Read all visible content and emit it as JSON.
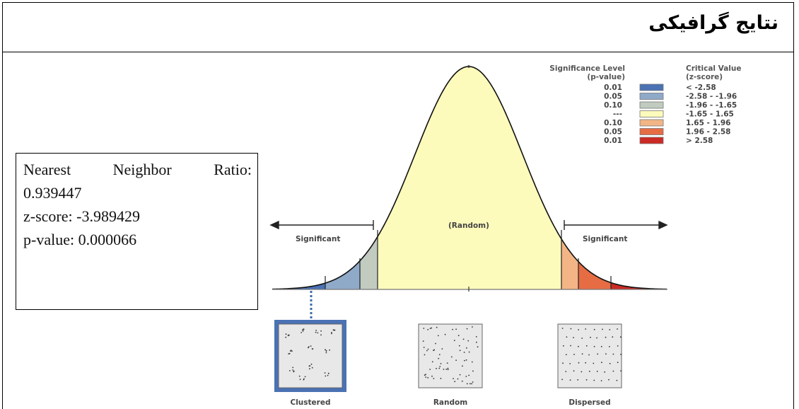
{
  "header": {
    "title": "نتایج گرافیکی"
  },
  "stats": {
    "ratio_label_words": [
      "Nearest",
      "Neighbor",
      "Ratio:"
    ],
    "ratio_value": "0.939447",
    "zscore": "z-score: -3.989429",
    "pvalue": "p-value: 0.000066"
  },
  "legend": {
    "sig_header_1": "Significance Level",
    "sig_header_2": "(p-value)",
    "crit_header_1": "Critical Value",
    "crit_header_2": "(z-score)",
    "rows": [
      {
        "p": "0.01",
        "z": "< -2.58",
        "color": "#4a72b4"
      },
      {
        "p": "0.05",
        "z": "-2.58 - -1.96",
        "color": "#8fa9c8"
      },
      {
        "p": "0.10",
        "z": "-1.96 - -1.65",
        "color": "#c1cbc0"
      },
      {
        "p": "---",
        "z": "-1.65 - 1.65",
        "color": "#fdfbbb"
      },
      {
        "p": "0.10",
        "z": "1.65 - 1.96",
        "color": "#f3b585"
      },
      {
        "p": "0.05",
        "z": "1.96 - 2.58",
        "color": "#e66c44"
      },
      {
        "p": "0.01",
        "z": "> 2.58",
        "color": "#cc2a24"
      }
    ]
  },
  "curve_labels": {
    "left": "Significant",
    "center": "(Random)",
    "right": "Significant"
  },
  "patterns": {
    "clustered": "Clustered",
    "random": "Random",
    "dispersed": "Dispersed"
  }
}
